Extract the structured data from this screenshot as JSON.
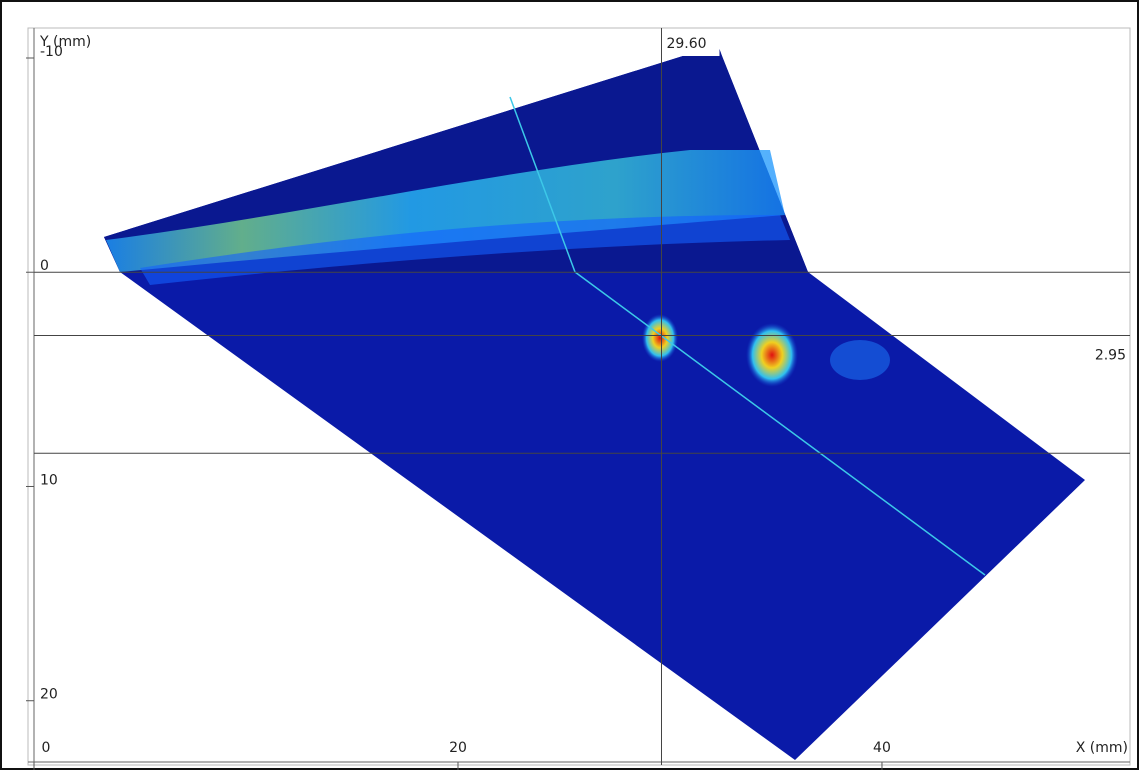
{
  "chart_data": {
    "type": "scan",
    "x_label": "X (mm)",
    "y_label": "Y (mm)",
    "xlim": [
      0,
      51.7
    ],
    "ylim": [
      -11.4,
      23
    ],
    "xticks": [
      0,
      20,
      40
    ],
    "yticks": [
      -10,
      0,
      10,
      20
    ],
    "x_cursor": {
      "value": 29.6,
      "label": "29.60"
    },
    "y_cursor": {
      "value": 2.95,
      "label": "2.95"
    },
    "hlines": [
      0,
      8.45
    ]
  }
}
